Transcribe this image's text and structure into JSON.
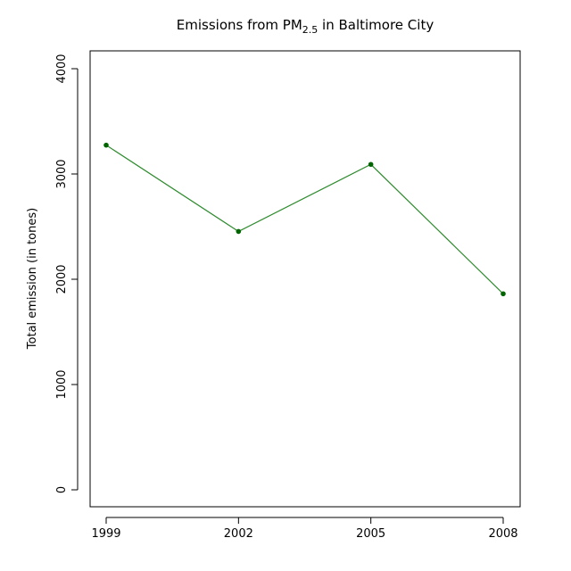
{
  "chart_data": {
    "type": "line",
    "title": {
      "prefix": "Emissions from PM",
      "subscript": "2.5",
      "suffix": " in Baltimore City"
    },
    "xlabel": "",
    "ylabel": "Total emission (in tones)",
    "x": [
      "1999",
      "2002",
      "2005",
      "2008"
    ],
    "series": [
      {
        "values": [
          3274,
          2454,
          3091,
          1862
        ]
      }
    ],
    "yticks": [
      "0",
      "1000",
      "2000",
      "3000",
      "4000"
    ],
    "ylim": [
      0,
      4000
    ],
    "grid": false,
    "line_color": "#2e8b2e",
    "point_color": "#006400"
  }
}
